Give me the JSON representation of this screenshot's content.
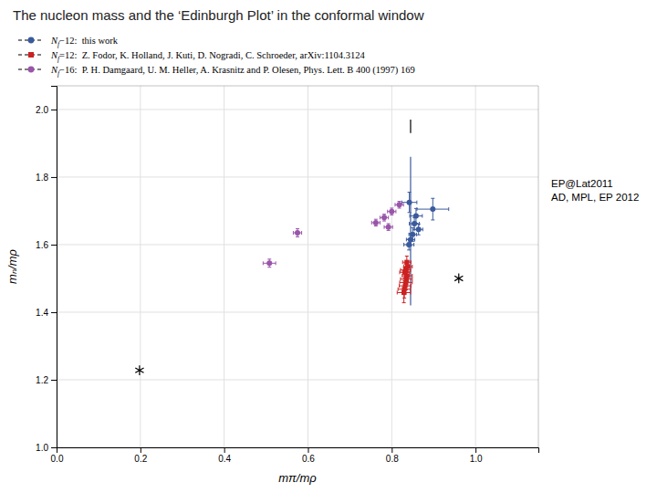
{
  "chart_data": {
    "type": "scatter",
    "title": "The nucleon mass and the ‘Edinburgh Plot’ in the conformal window",
    "annotation": "EP@Lat2011\nAD, MPL, EP 2012",
    "xlabel": "mπ/mρ",
    "ylabel": "mₙ/mρ",
    "xlim": [
      0,
      1.15
    ],
    "ylim": [
      1.0,
      2.07
    ],
    "xticks": [
      {
        "value": 0,
        "label": "0.0"
      },
      0.2,
      0.4,
      0.6,
      0.8,
      {
        "value": 1.0,
        "label": "1.0"
      }
    ],
    "yticks": [
      {
        "value": 1.0,
        "label": "1.0"
      },
      1.2,
      1.4,
      1.6,
      1.8,
      {
        "value": 2.0,
        "label": "2.0"
      }
    ],
    "grid": true,
    "series": [
      {
        "name": "Nf−12:  this work",
        "color": "#3a5a9c",
        "marker": "circle",
        "x": [
          0.842,
          0.858,
          0.854,
          0.864,
          0.898,
          0.85,
          0.845,
          0.841
        ],
        "y": [
          1.725,
          1.685,
          1.662,
          1.645,
          1.705,
          1.63,
          1.615,
          1.6
        ],
        "xerr": [
          0.018,
          0.015,
          0.012,
          0.01,
          0.038,
          0.009,
          0.01,
          0.012
        ],
        "yerr": [
          0.03,
          0.022,
          0.018,
          0.016,
          0.032,
          0.02,
          0.018,
          0.016
        ]
      },
      {
        "name": "Nf=12:  Z. Fodor, K. Holland, J. Kuti, D. Nogradi, C. Schroeder, arXiv:1104.3124",
        "color": "#cc2222",
        "marker": "square",
        "x": [
          0.836,
          0.839,
          0.833,
          0.831,
          0.837,
          0.835,
          0.834,
          0.832,
          0.83,
          0.829
        ],
        "y": [
          1.548,
          1.535,
          1.525,
          1.518,
          1.508,
          1.498,
          1.488,
          1.478,
          1.468,
          1.458
        ],
        "xerr": [
          0.01,
          0.01,
          0.012,
          0.012,
          0.012,
          0.014,
          0.015,
          0.014,
          0.015,
          0.016
        ],
        "yerr": [
          0.018,
          0.016,
          0.018,
          0.016,
          0.018,
          0.02,
          0.022,
          0.024,
          0.026,
          0.03
        ]
      },
      {
        "name": "Nf−16:  P. H. Damgaard, U. M. Heller, A. Krasnitz and P. Olesen, Phys. Lett. B 400 (1997) 169",
        "color": "#9955aa",
        "marker": "circle",
        "x": [
          0.575,
          0.762,
          0.782,
          0.8,
          0.818,
          0.792,
          0.508
        ],
        "y": [
          1.635,
          1.665,
          1.68,
          1.698,
          1.718,
          1.652,
          1.545
        ],
        "xerr": [
          0.01,
          0.01,
          0.01,
          0.01,
          0.01,
          0.01,
          0.015
        ],
        "yerr": [
          0.012,
          0.01,
          0.01,
          0.01,
          0.01,
          0.01,
          0.012
        ]
      }
    ],
    "vlines": [
      {
        "x": 0.845,
        "y": [
          1.42,
          1.86
        ],
        "color": "#3a5a9c"
      },
      {
        "x": 0.845,
        "y": [
          1.93,
          1.97
        ],
        "color": "#000000"
      }
    ],
    "stars": {
      "x": [
        0.96,
        0.198
      ],
      "y": [
        1.5,
        1.228
      ],
      "color": "#000000",
      "marker": "asterisk"
    }
  }
}
